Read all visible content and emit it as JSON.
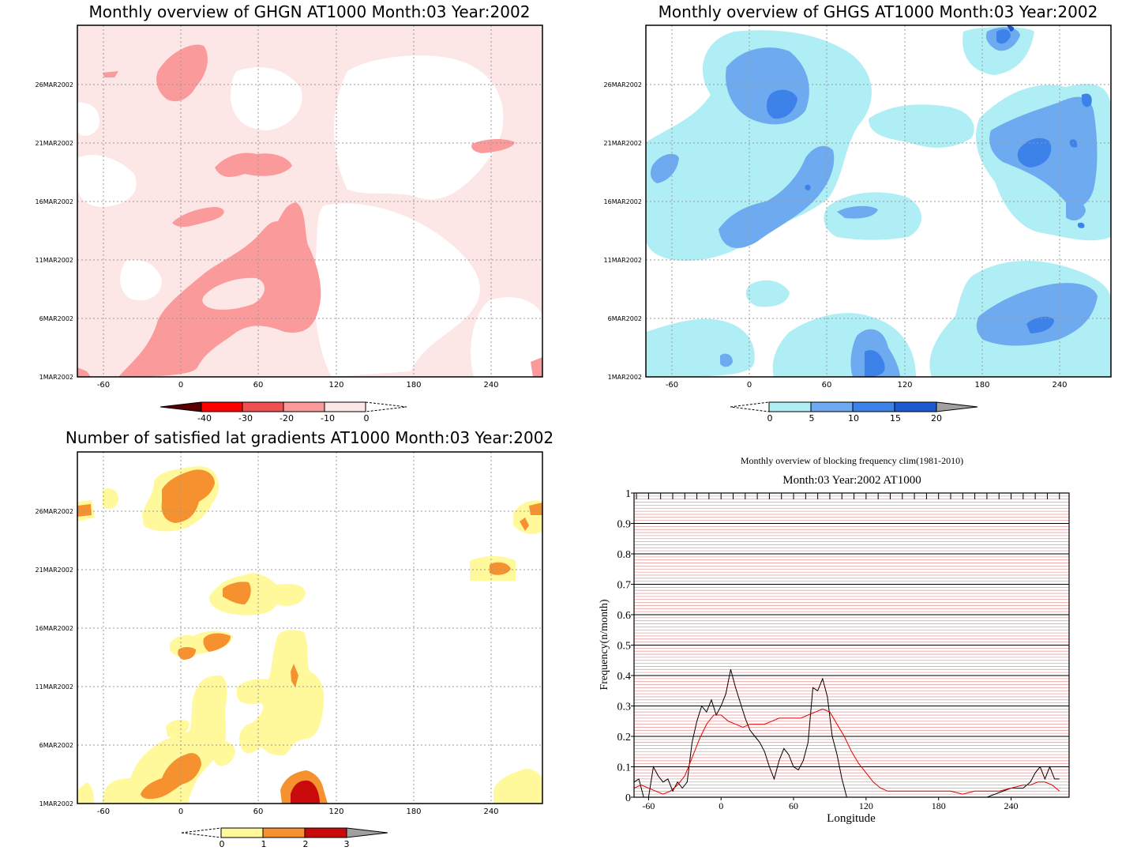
{
  "chart_data": [
    {
      "type": "heatmap",
      "title": "Monthly overview of GHGN AT1000 Month:03 Year:2002",
      "x_ticks": [
        "-60",
        "0",
        "60",
        "120",
        "180",
        "240"
      ],
      "y_ticks": [
        "1MAR2002",
        "6MAR2002",
        "11MAR2002",
        "16MAR2002",
        "21MAR2002",
        "26MAR2002"
      ],
      "colorbar": {
        "labels": [
          "-40",
          "-30",
          "-20",
          "-10",
          "0"
        ],
        "colors": [
          "#5a0000",
          "#ff0000",
          "#f05050",
          "#fa9a9a",
          "#fde6e6"
        ]
      }
    },
    {
      "type": "heatmap",
      "title": "Monthly overview of GHGS AT1000 Month:03 Year:2002",
      "x_ticks": [
        "-60",
        "0",
        "60",
        "120",
        "180",
        "240"
      ],
      "y_ticks": [
        "1MAR2002",
        "6MAR2002",
        "11MAR2002",
        "16MAR2002",
        "21MAR2002",
        "26MAR2002"
      ],
      "colorbar": {
        "labels": [
          "0",
          "5",
          "10",
          "15",
          "20"
        ],
        "colors": [
          "#b0eef6",
          "#6eaaf0",
          "#3c82e8",
          "#1e5ad0",
          "#a0a0a0"
        ]
      }
    },
    {
      "type": "heatmap",
      "title": "Number of satisfied lat gradients AT1000 Month:03 Year:2002",
      "x_ticks": [
        "-60",
        "0",
        "60",
        "120",
        "180",
        "240"
      ],
      "y_ticks": [
        "1MAR2002",
        "6MAR2002",
        "11MAR2002",
        "16MAR2002",
        "21MAR2002",
        "26MAR2002"
      ],
      "colorbar": {
        "labels": [
          "0",
          "1",
          "2",
          "3"
        ],
        "colors": [
          "#fff99c",
          "#f5922f",
          "#c80a0a",
          "#a0a0a0"
        ]
      }
    },
    {
      "type": "line",
      "title": "Monthly overview of blocking frequency clim(1981-2010)",
      "subtitle": "Month:03 Year:2002  AT1000",
      "xlabel": "Longitude",
      "ylabel": "Frequency(n/month)",
      "xlim": [
        -72,
        288
      ],
      "ylim": [
        0,
        1
      ],
      "x_ticks": [
        "-60",
        "0",
        "60",
        "120",
        "180",
        "240"
      ],
      "y_ticks": [
        "0",
        "0.1",
        "0.2",
        "0.3",
        "0.4",
        "0.5",
        "0.6",
        "0.7",
        "0.8",
        "0.9",
        "1"
      ],
      "series": [
        {
          "color": "#000000",
          "x": [
            -72,
            -68,
            -64,
            -60,
            -56,
            -52,
            -48,
            -44,
            -40,
            -36,
            -32,
            -28,
            -24,
            -20,
            -16,
            -12,
            -8,
            -4,
            0,
            4,
            8,
            12,
            16,
            20,
            24,
            28,
            32,
            36,
            40,
            44,
            48,
            52,
            56,
            60,
            64,
            68,
            72,
            76,
            80,
            84,
            88,
            92,
            96,
            100,
            104,
            108,
            112,
            116,
            120,
            124,
            128,
            180,
            220,
            240,
            250,
            256,
            260,
            264,
            268,
            272,
            276,
            280
          ],
          "y": [
            0.05,
            0.06,
            0.0,
            0.0,
            0.1,
            0.07,
            0.05,
            0.06,
            0.02,
            0.05,
            0.03,
            0.05,
            0.18,
            0.25,
            0.3,
            0.28,
            0.32,
            0.27,
            0.3,
            0.34,
            0.42,
            0.36,
            0.31,
            0.26,
            0.22,
            0.2,
            0.18,
            0.15,
            0.1,
            0.06,
            0.12,
            0.16,
            0.14,
            0.1,
            0.09,
            0.12,
            0.18,
            0.36,
            0.35,
            0.39,
            0.33,
            0.2,
            0.14,
            0.06,
            0.0,
            0.0,
            0.0,
            0.0,
            0.0,
            0.0,
            0.0,
            0.0,
            0.0,
            0.03,
            0.03,
            0.05,
            0.08,
            0.1,
            0.06,
            0.1,
            0.06,
            0.06
          ]
        },
        {
          "color": "#e00000",
          "x": [
            -72,
            -66,
            -60,
            -54,
            -48,
            -42,
            -36,
            -30,
            -24,
            -18,
            -12,
            -6,
            0,
            6,
            12,
            18,
            24,
            30,
            36,
            42,
            48,
            54,
            60,
            66,
            72,
            78,
            84,
            90,
            96,
            102,
            108,
            114,
            120,
            126,
            132,
            138,
            144,
            150,
            156,
            162,
            168,
            174,
            180,
            190,
            200,
            210,
            220,
            230,
            240,
            250,
            256,
            262,
            268,
            274,
            280
          ],
          "y": [
            0.03,
            0.04,
            0.03,
            0.02,
            0.01,
            0.02,
            0.04,
            0.07,
            0.13,
            0.19,
            0.24,
            0.27,
            0.27,
            0.25,
            0.24,
            0.23,
            0.24,
            0.24,
            0.24,
            0.25,
            0.26,
            0.26,
            0.26,
            0.26,
            0.27,
            0.28,
            0.29,
            0.28,
            0.24,
            0.2,
            0.15,
            0.11,
            0.08,
            0.05,
            0.03,
            0.02,
            0.02,
            0.02,
            0.02,
            0.02,
            0.02,
            0.02,
            0.02,
            0.02,
            0.01,
            0.02,
            0.02,
            0.02,
            0.03,
            0.04,
            0.04,
            0.05,
            0.05,
            0.04,
            0.02
          ]
        }
      ]
    }
  ]
}
